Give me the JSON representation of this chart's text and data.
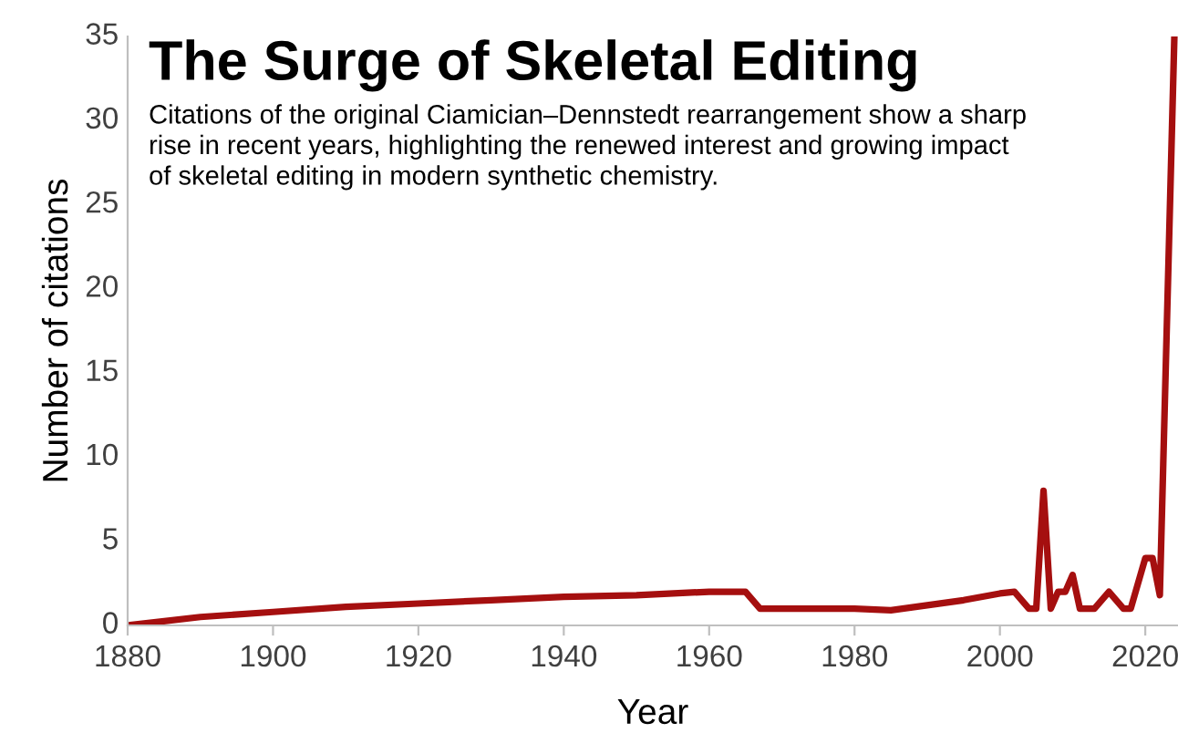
{
  "chart_data": {
    "type": "line",
    "title": "The Surge of Skeletal Editing",
    "subtitle": "Citations of the original Ciamician–Dennstedt rearrangement show a sharp rise in recent years, highlighting the renewed interest and growing impact of skeletal editing in modern synthetic chemistry.",
    "xlabel": "Year",
    "ylabel": "Number of citations",
    "series": [
      {
        "color": "#a50f0f",
        "x": [
          1880,
          1890,
          1900,
          1910,
          1920,
          1930,
          1940,
          1950,
          1960,
          1965,
          1967,
          1970,
          1980,
          1985,
          1990,
          1995,
          2000,
          2002,
          2004,
          2005,
          2006,
          2007,
          2008,
          2009,
          2010,
          2011,
          2013,
          2015,
          2017,
          2018,
          2020,
          2021,
          2022,
          2024
        ],
        "values": [
          0,
          0.5,
          0.8,
          1.1,
          1.3,
          1.5,
          1.7,
          1.8,
          2.0,
          2.0,
          1.0,
          1.0,
          1.0,
          0.9,
          1.2,
          1.5,
          1.9,
          2.0,
          1.0,
          1.0,
          8.0,
          1.0,
          2.0,
          2.0,
          3.0,
          1.0,
          1.0,
          2.0,
          1.0,
          1.0,
          4.0,
          4.0,
          1.8,
          35
        ]
      }
    ],
    "xlim": [
      1880,
      2024.5
    ],
    "xticks": [
      1880,
      1900,
      1920,
      1940,
      1960,
      1980,
      2000,
      2020
    ],
    "ylim": [
      0,
      35
    ],
    "yticks": [
      0,
      5,
      10,
      15,
      20,
      25,
      30,
      35
    ],
    "grid": false,
    "legend": false,
    "marker": "none",
    "line_style": "solid"
  }
}
